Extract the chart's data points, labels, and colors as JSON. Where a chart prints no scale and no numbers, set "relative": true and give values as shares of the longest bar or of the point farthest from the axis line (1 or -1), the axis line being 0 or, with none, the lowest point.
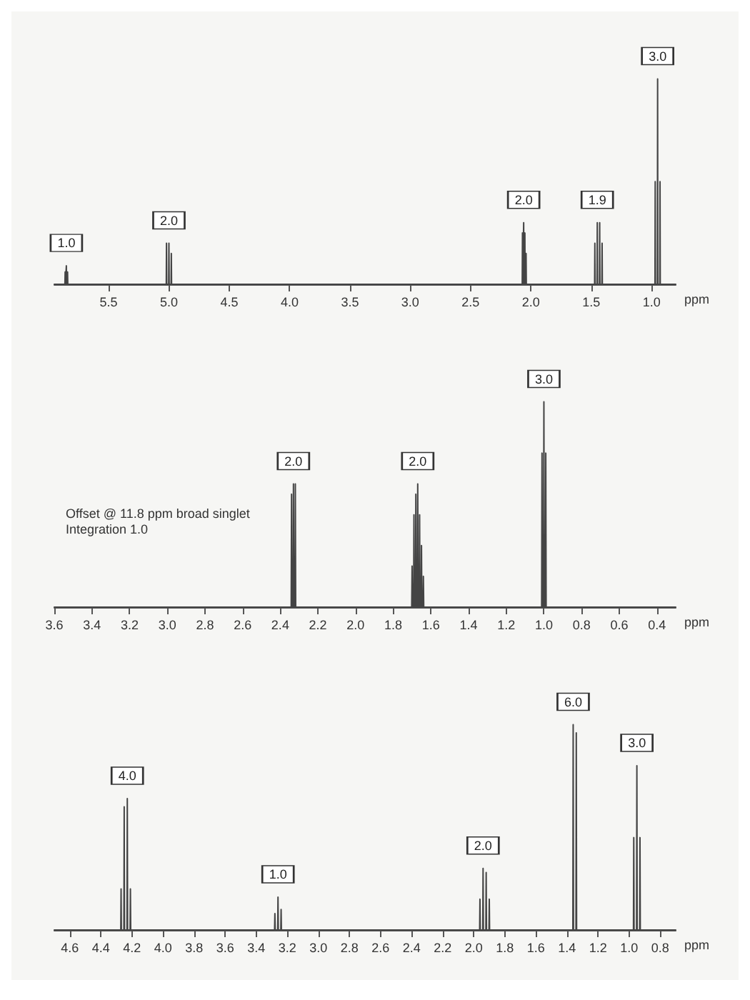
{
  "chart_data": [
    {
      "type": "line",
      "relative": true,
      "xlabel": "ppm",
      "xlim": [
        5.95,
        0.8
      ],
      "xticks": [
        5.5,
        {
          "value": 5,
          "label": "5.0"
        },
        4.5,
        {
          "value": 4,
          "label": "4.0"
        },
        3.5,
        {
          "value": 3,
          "label": "3.0"
        },
        2.5,
        {
          "value": 2,
          "label": "2.0"
        },
        1.5,
        {
          "value": 1,
          "label": "1.0"
        }
      ],
      "grid": false,
      "series": [
        {
          "color": "#444444",
          "x": [
            5.95,
            5.862,
            5.86,
            5.858,
            5.852,
            5.85,
            5.848,
            5.842,
            5.84,
            5.838,
            5.022,
            5.02,
            5.018,
            5.002,
            5.0,
            4.998,
            4.982,
            4.98,
            4.978,
            2.072,
            2.07,
            2.068,
            2.062,
            2.06,
            2.058,
            2.052,
            2.05,
            2.048,
            2.042,
            2.04,
            2.038,
            1.472,
            1.47,
            1.468,
            1.452,
            1.45,
            1.448,
            1.432,
            1.43,
            1.428,
            1.412,
            1.41,
            1.408,
            0.972,
            0.97,
            0.968,
            0.952,
            0.95,
            0.948,
            0.932,
            0.93,
            0.928,
            0.8
          ],
          "values": [
            0,
            0,
            0.06,
            0,
            0,
            0.09,
            0,
            0,
            0.06,
            0,
            0,
            0.2,
            0,
            0,
            0.2,
            0,
            0,
            0.15,
            0,
            0,
            0.25,
            0,
            0,
            0.3,
            0,
            0,
            0.25,
            0,
            0,
            0.15,
            0,
            0,
            0.2,
            0,
            0,
            0.3,
            0,
            0,
            0.3,
            0,
            0,
            0.2,
            0,
            0,
            0.5,
            0,
            0,
            1,
            0,
            0,
            0.5,
            0,
            0
          ]
        }
      ],
      "annotations": [
        {
          "text": "1.0",
          "x": 5.85,
          "y": 0.09
        },
        {
          "text": "2.0",
          "x": 5.0,
          "y": 0.2
        },
        {
          "text": "2.0",
          "x": 2.06,
          "y": 0.3
        },
        {
          "text": "1.9",
          "x": 1.45,
          "y": 0.3
        },
        {
          "text": "3.0",
          "x": 0.95,
          "y": 1
        }
      ]
    },
    {
      "type": "line",
      "relative": true,
      "xlabel": "ppm",
      "xlim": [
        3.6,
        0.3
      ],
      "xticks": [
        3.6,
        3.4,
        3.2,
        {
          "value": 3,
          "label": "3.0"
        },
        2.8,
        2.6,
        2.4,
        2.2,
        {
          "value": 2,
          "label": "2.0"
        },
        1.8,
        1.6,
        1.4,
        1.2,
        {
          "value": 1,
          "label": "1.0"
        },
        0.8,
        0.6,
        0.4
      ],
      "grid": false,
      "series": [
        {
          "color": "#444444",
          "x": [
            3.6,
            2.342,
            2.34,
            2.338,
            2.332,
            2.33,
            2.328,
            2.322,
            2.32,
            2.318,
            1.702,
            1.7,
            1.698,
            1.692,
            1.69,
            1.688,
            1.682,
            1.68,
            1.678,
            1.672,
            1.67,
            1.668,
            1.662,
            1.66,
            1.658,
            1.652,
            1.65,
            1.648,
            1.642,
            1.64,
            1.638,
            1.012,
            1.01,
            1.008,
            1.002,
            1.0,
            0.998,
            0.992,
            0.99,
            0.988,
            0.3
          ],
          "values": [
            0,
            0,
            0.55,
            0,
            0,
            0.6,
            0,
            0,
            0.6,
            0,
            0,
            0.2,
            0,
            0,
            0.45,
            0,
            0,
            0.55,
            0,
            0,
            0.6,
            0,
            0,
            0.45,
            0,
            0,
            0.3,
            0,
            0,
            0.15,
            0,
            0,
            0.75,
            0,
            0,
            1,
            0,
            0,
            0.75,
            0,
            0
          ]
        }
      ],
      "annotations": [
        "Offset @ 11.8 ppm broad singlet\nIntegration 1.0",
        {
          "text": "2.0",
          "x": 2.33,
          "y": 0.6
        },
        {
          "text": "2.0",
          "x": 1.67,
          "y": 0.6
        },
        {
          "text": "3.0",
          "x": 1.0,
          "y": 1
        }
      ]
    },
    {
      "type": "line",
      "relative": true,
      "xlabel": "ppm",
      "xlim": [
        4.7,
        0.7
      ],
      "xticks": [
        4.6,
        4.4,
        4.2,
        {
          "value": 4,
          "label": "4.0"
        },
        3.8,
        3.6,
        3.4,
        3.2,
        {
          "value": 3,
          "label": "3.0"
        },
        2.8,
        2.6,
        2.4,
        2.2,
        {
          "value": 2,
          "label": "2.0"
        },
        1.8,
        1.6,
        1.4,
        1.2,
        {
          "value": 1,
          "label": "1.0"
        },
        0.8
      ],
      "grid": false,
      "series": [
        {
          "color": "#444444",
          "x": [
            4.7,
            4.272,
            4.27,
            4.268,
            4.252,
            4.25,
            4.248,
            4.232,
            4.23,
            4.228,
            4.212,
            4.21,
            4.208,
            3.282,
            3.28,
            3.278,
            3.262,
            3.26,
            3.258,
            3.242,
            3.24,
            3.238,
            1.962,
            1.96,
            1.958,
            1.942,
            1.94,
            1.938,
            1.922,
            1.92,
            1.918,
            1.902,
            1.9,
            1.898,
            1.362,
            1.36,
            1.358,
            1.342,
            1.34,
            1.338,
            0.972,
            0.97,
            0.968,
            0.952,
            0.95,
            0.948,
            0.932,
            0.93,
            0.928,
            0.7
          ],
          "values": [
            0,
            0,
            0.2,
            0,
            0,
            0.6,
            0,
            0,
            0.64,
            0,
            0,
            0.2,
            0,
            0,
            0.08,
            0,
            0,
            0.16,
            0,
            0,
            0.1,
            0,
            0,
            0.15,
            0,
            0,
            0.3,
            0,
            0,
            0.28,
            0,
            0,
            0.15,
            0,
            0,
            1,
            0,
            0,
            0.96,
            0,
            0,
            0.45,
            0,
            0,
            0.8,
            0,
            0,
            0.45,
            0,
            0
          ]
        }
      ],
      "annotations": [
        {
          "text": "4.0",
          "x": 4.23,
          "y": 0.64
        },
        {
          "text": "1.0",
          "x": 3.26,
          "y": 0.16
        },
        {
          "text": "2.0",
          "x": 1.94,
          "y": 0.3
        },
        {
          "text": "6.0",
          "x": 1.36,
          "y": 1
        },
        {
          "text": "3.0",
          "x": 0.95,
          "y": 0.8
        }
      ]
    }
  ]
}
